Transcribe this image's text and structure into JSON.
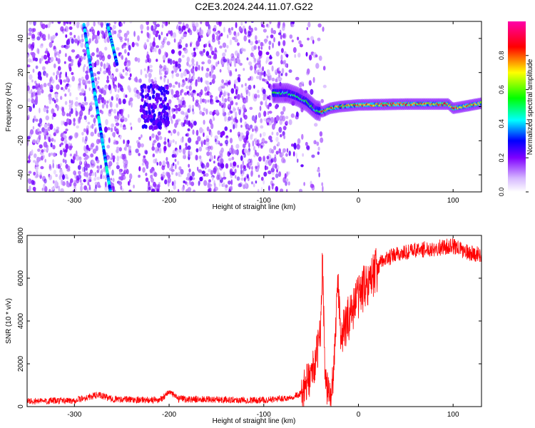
{
  "title": "C2E3.2024.244.11.07.G22",
  "chart_data": [
    {
      "type": "heatmap",
      "xlabel": "Height of straight line (km)",
      "ylabel": "Frequency (Hz)",
      "xlim": [
        -350,
        130
      ],
      "ylim": [
        -50,
        50
      ],
      "x_ticks": [
        -300,
        -200,
        -100,
        0,
        100
      ],
      "y_ticks": [
        -40,
        -20,
        0,
        20,
        40
      ],
      "colorbar": {
        "label": "Normalized spectral amplitude",
        "range": [
          0,
          1
        ],
        "ticks": [
          "0.0",
          "0.2",
          "0.4",
          "0.6",
          "0.8"
        ],
        "colormap": [
          "#ffffff",
          "#7f00ff",
          "#0000ff",
          "#00ffff",
          "#00ff00",
          "#ffff00",
          "#ff0000",
          "#ff00aa"
        ]
      },
      "features": {
        "noise_region_x": [
          -350,
          -75
        ],
        "streak_1": {
          "x": [
            -290,
            -262
          ],
          "y": [
            48,
            -50
          ]
        },
        "streak_2": {
          "x": [
            -265,
            -255
          ],
          "y": [
            48,
            25
          ]
        },
        "signal_trace": [
          {
            "x": -90,
            "y": 8
          },
          {
            "x": -75,
            "y": 8
          },
          {
            "x": -65,
            "y": 6
          },
          {
            "x": -55,
            "y": 3
          },
          {
            "x": -45,
            "y": -2
          },
          {
            "x": -38,
            "y": -3
          },
          {
            "x": -30,
            "y": -1
          },
          {
            "x": -20,
            "y": 0
          },
          {
            "x": 0,
            "y": 1
          },
          {
            "x": 50,
            "y": 1.5
          },
          {
            "x": 95,
            "y": 1.5
          },
          {
            "x": 100,
            "y": -1
          },
          {
            "x": 110,
            "y": 0
          },
          {
            "x": 130,
            "y": 2
          }
        ]
      }
    },
    {
      "type": "line",
      "xlabel": "Height of straight line (km)",
      "ylabel": "SNR (10 * v/v)",
      "xlim": [
        -350,
        130
      ],
      "ylim": [
        0,
        8000
      ],
      "x_ticks": [
        -300,
        -200,
        -100,
        0,
        100
      ],
      "y_ticks": [
        0,
        2000,
        4000,
        6000,
        8000
      ],
      "color": "#ff0000",
      "trend": [
        {
          "x": -350,
          "y": 250
        },
        {
          "x": -300,
          "y": 280
        },
        {
          "x": -275,
          "y": 550
        },
        {
          "x": -260,
          "y": 350
        },
        {
          "x": -210,
          "y": 300
        },
        {
          "x": -200,
          "y": 700
        },
        {
          "x": -190,
          "y": 350
        },
        {
          "x": -100,
          "y": 300
        },
        {
          "x": -75,
          "y": 400
        },
        {
          "x": -60,
          "y": 600
        },
        {
          "x": -50,
          "y": 1500
        },
        {
          "x": -45,
          "y": 2200
        },
        {
          "x": -40,
          "y": 3500
        },
        {
          "x": -38,
          "y": 7000
        },
        {
          "x": -35,
          "y": 1200
        },
        {
          "x": -30,
          "y": 300
        },
        {
          "x": -26,
          "y": 1500
        },
        {
          "x": -22,
          "y": 6000
        },
        {
          "x": -18,
          "y": 3200
        },
        {
          "x": -10,
          "y": 4200
        },
        {
          "x": 0,
          "y": 5200
        },
        {
          "x": 10,
          "y": 5800
        },
        {
          "x": 25,
          "y": 6800
        },
        {
          "x": 40,
          "y": 7100
        },
        {
          "x": 60,
          "y": 7300
        },
        {
          "x": 80,
          "y": 7400
        },
        {
          "x": 100,
          "y": 7500
        },
        {
          "x": 115,
          "y": 7200
        },
        {
          "x": 130,
          "y": 7100
        }
      ]
    }
  ]
}
